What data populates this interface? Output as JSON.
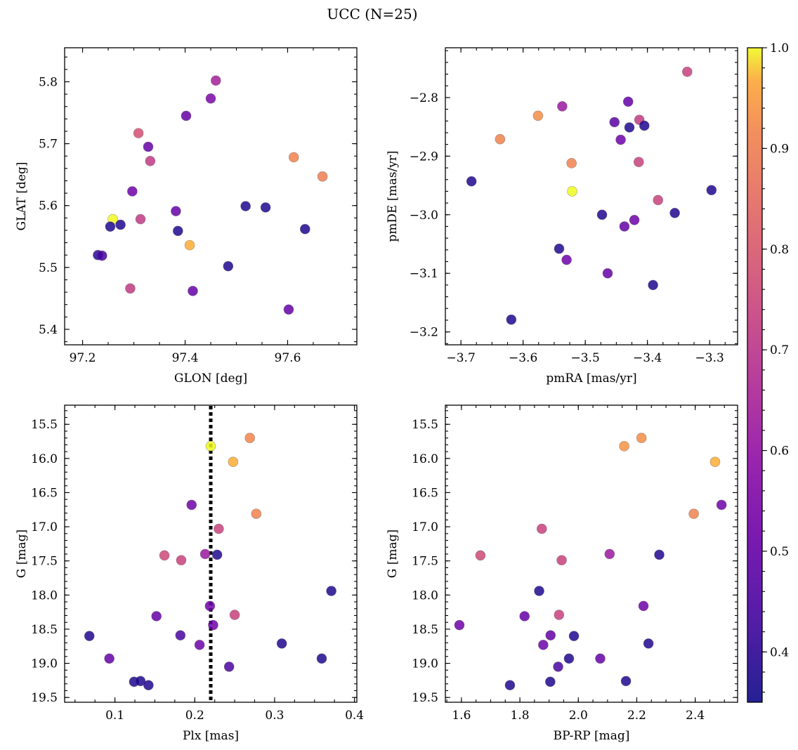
{
  "figure": {
    "title": "UCC (N=25)"
  },
  "colorbar": {
    "colormap": "plasma",
    "range": [
      0.35,
      1.0
    ],
    "ticks": [
      "0.4",
      "0.5",
      "0.6",
      "0.7",
      "0.8",
      "0.9",
      "1.0"
    ]
  },
  "chart_data": [
    {
      "type": "scatter",
      "xlabel": "GLON [deg]",
      "ylabel": "GLAT [deg]",
      "xlim": [
        97.165,
        97.735
      ],
      "ylim": [
        5.375,
        5.855
      ],
      "xticks": [
        "97.2",
        "97.4",
        "97.6"
      ],
      "yticks": [
        "5.4",
        "5.5",
        "5.6",
        "5.7",
        "5.8"
      ],
      "points": [
        {
          "x": 97.259,
          "y": 5.578,
          "c": 1.0
        },
        {
          "x": 97.409,
          "y": 5.536,
          "c": 0.97
        },
        {
          "x": 97.612,
          "y": 5.678,
          "c": 0.91
        },
        {
          "x": 97.668,
          "y": 5.647,
          "c": 0.9
        },
        {
          "x": 97.309,
          "y": 5.717,
          "c": 0.78
        },
        {
          "x": 97.332,
          "y": 5.672,
          "c": 0.72
        },
        {
          "x": 97.313,
          "y": 5.578,
          "c": 0.72
        },
        {
          "x": 97.293,
          "y": 5.466,
          "c": 0.72
        },
        {
          "x": 97.46,
          "y": 5.802,
          "c": 0.64
        },
        {
          "x": 97.45,
          "y": 5.773,
          "c": 0.55
        },
        {
          "x": 97.402,
          "y": 5.745,
          "c": 0.5
        },
        {
          "x": 97.328,
          "y": 5.695,
          "c": 0.5
        },
        {
          "x": 97.297,
          "y": 5.623,
          "c": 0.52
        },
        {
          "x": 97.382,
          "y": 5.591,
          "c": 0.5
        },
        {
          "x": 97.415,
          "y": 5.462,
          "c": 0.5
        },
        {
          "x": 97.602,
          "y": 5.432,
          "c": 0.5
        },
        {
          "x": 97.23,
          "y": 5.52,
          "c": 0.4
        },
        {
          "x": 97.238,
          "y": 5.519,
          "c": 0.44
        },
        {
          "x": 97.254,
          "y": 5.566,
          "c": 0.38
        },
        {
          "x": 97.274,
          "y": 5.569,
          "c": 0.38
        },
        {
          "x": 97.386,
          "y": 5.559,
          "c": 0.38
        },
        {
          "x": 97.484,
          "y": 5.502,
          "c": 0.38
        },
        {
          "x": 97.518,
          "y": 5.599,
          "c": 0.38
        },
        {
          "x": 97.557,
          "y": 5.597,
          "c": 0.38
        },
        {
          "x": 97.634,
          "y": 5.562,
          "c": 0.38
        }
      ]
    },
    {
      "type": "scatter",
      "xlabel": "pmRA [mas/yr]",
      "ylabel": "pmDE [mas/yr]",
      "xlim": [
        -3.725,
        -3.255
      ],
      "ylim": [
        -3.222,
        -2.715
      ],
      "xticks": [
        "−3.7",
        "−3.6",
        "−3.5",
        "−3.4",
        "−3.3"
      ],
      "yticks": [
        "−3.2",
        "−3.1",
        "−3.0",
        "−2.9",
        "−2.8"
      ],
      "points": [
        {
          "x": -3.521,
          "y": -2.96,
          "c": 1.0
        },
        {
          "x": -3.576,
          "y": -2.831,
          "c": 0.93
        },
        {
          "x": -3.637,
          "y": -2.871,
          "c": 0.91
        },
        {
          "x": -3.522,
          "y": -2.912,
          "c": 0.91
        },
        {
          "x": -3.336,
          "y": -2.756,
          "c": 0.74
        },
        {
          "x": -3.413,
          "y": -2.838,
          "c": 0.72
        },
        {
          "x": -3.414,
          "y": -2.91,
          "c": 0.74
        },
        {
          "x": -3.383,
          "y": -2.975,
          "c": 0.74
        },
        {
          "x": -3.537,
          "y": -2.815,
          "c": 0.62
        },
        {
          "x": -3.431,
          "y": -2.807,
          "c": 0.5
        },
        {
          "x": -3.453,
          "y": -2.842,
          "c": 0.48
        },
        {
          "x": -3.443,
          "y": -2.872,
          "c": 0.52
        },
        {
          "x": -3.437,
          "y": -3.02,
          "c": 0.5
        },
        {
          "x": -3.421,
          "y": -3.009,
          "c": 0.52
        },
        {
          "x": -3.464,
          "y": -3.1,
          "c": 0.5
        },
        {
          "x": -3.53,
          "y": -3.077,
          "c": 0.52
        },
        {
          "x": -3.429,
          "y": -2.851,
          "c": 0.38
        },
        {
          "x": -3.405,
          "y": -2.848,
          "c": 0.38
        },
        {
          "x": -3.683,
          "y": -2.943,
          "c": 0.38
        },
        {
          "x": -3.473,
          "y": -3.0,
          "c": 0.38
        },
        {
          "x": -3.356,
          "y": -2.997,
          "c": 0.38
        },
        {
          "x": -3.297,
          "y": -2.958,
          "c": 0.38
        },
        {
          "x": -3.542,
          "y": -3.058,
          "c": 0.38
        },
        {
          "x": -3.391,
          "y": -3.12,
          "c": 0.38
        },
        {
          "x": -3.619,
          "y": -3.179,
          "c": 0.38
        }
      ]
    },
    {
      "type": "scatter",
      "xlabel": "Plx [mas]",
      "ylabel": "G [mag]",
      "xlim": [
        0.037,
        0.403
      ],
      "ylim": [
        19.57,
        15.22
      ],
      "inverted_y": true,
      "xticks": [
        "0.1",
        "0.2",
        "0.3",
        "0.4"
      ],
      "yticks": [
        "15.5",
        "16.0",
        "16.5",
        "17.0",
        "17.5",
        "18.0",
        "18.5",
        "19.0",
        "19.5"
      ],
      "reference_line": {
        "x": 0.22,
        "style": "dotted"
      },
      "points": [
        {
          "x": 0.22,
          "y": 15.82,
          "c": 1.0
        },
        {
          "x": 0.269,
          "y": 15.7,
          "c": 0.92
        },
        {
          "x": 0.248,
          "y": 16.05,
          "c": 0.97
        },
        {
          "x": 0.277,
          "y": 16.81,
          "c": 0.91
        },
        {
          "x": 0.196,
          "y": 16.68,
          "c": 0.52
        },
        {
          "x": 0.23,
          "y": 17.03,
          "c": 0.74
        },
        {
          "x": 0.162,
          "y": 17.42,
          "c": 0.76
        },
        {
          "x": 0.183,
          "y": 17.49,
          "c": 0.74
        },
        {
          "x": 0.213,
          "y": 17.4,
          "c": 0.62
        },
        {
          "x": 0.228,
          "y": 17.41,
          "c": 0.38
        },
        {
          "x": 0.25,
          "y": 18.29,
          "c": 0.74
        },
        {
          "x": 0.371,
          "y": 17.94,
          "c": 0.38
        },
        {
          "x": 0.219,
          "y": 18.16,
          "c": 0.52
        },
        {
          "x": 0.152,
          "y": 18.31,
          "c": 0.5
        },
        {
          "x": 0.223,
          "y": 18.44,
          "c": 0.52
        },
        {
          "x": 0.068,
          "y": 18.6,
          "c": 0.38
        },
        {
          "x": 0.182,
          "y": 18.59,
          "c": 0.45
        },
        {
          "x": 0.206,
          "y": 18.73,
          "c": 0.52
        },
        {
          "x": 0.309,
          "y": 18.71,
          "c": 0.38
        },
        {
          "x": 0.093,
          "y": 18.93,
          "c": 0.5
        },
        {
          "x": 0.359,
          "y": 18.93,
          "c": 0.38
        },
        {
          "x": 0.243,
          "y": 19.05,
          "c": 0.45
        },
        {
          "x": 0.124,
          "y": 19.27,
          "c": 0.38
        },
        {
          "x": 0.132,
          "y": 19.26,
          "c": 0.38
        },
        {
          "x": 0.142,
          "y": 19.32,
          "c": 0.38
        }
      ]
    },
    {
      "type": "scatter",
      "xlabel": "BP-RP [mag]",
      "ylabel": "G [mag]",
      "xlim": [
        1.545,
        2.545
      ],
      "ylim": [
        19.57,
        15.22
      ],
      "inverted_y": true,
      "xticks": [
        "1.6",
        "1.8",
        "2.0",
        "2.2",
        "2.4"
      ],
      "yticks": [
        "15.5",
        "16.0",
        "16.5",
        "17.0",
        "17.5",
        "18.0",
        "18.5",
        "19.0",
        "19.5"
      ],
      "points": [
        {
          "x": 2.157,
          "y": 15.82,
          "c": 0.94
        },
        {
          "x": 2.216,
          "y": 15.7,
          "c": 0.93
        },
        {
          "x": 2.468,
          "y": 16.05,
          "c": 0.97
        },
        {
          "x": 2.395,
          "y": 16.81,
          "c": 0.91
        },
        {
          "x": 2.49,
          "y": 16.68,
          "c": 0.52
        },
        {
          "x": 1.875,
          "y": 17.03,
          "c": 0.74
        },
        {
          "x": 1.665,
          "y": 17.42,
          "c": 0.76
        },
        {
          "x": 1.943,
          "y": 17.49,
          "c": 0.74
        },
        {
          "x": 2.107,
          "y": 17.4,
          "c": 0.62
        },
        {
          "x": 2.277,
          "y": 17.41,
          "c": 0.38
        },
        {
          "x": 1.866,
          "y": 17.94,
          "c": 0.38
        },
        {
          "x": 1.934,
          "y": 18.29,
          "c": 0.74
        },
        {
          "x": 2.223,
          "y": 18.16,
          "c": 0.52
        },
        {
          "x": 1.816,
          "y": 18.31,
          "c": 0.5
        },
        {
          "x": 1.593,
          "y": 18.44,
          "c": 0.52
        },
        {
          "x": 1.905,
          "y": 18.59,
          "c": 0.5
        },
        {
          "x": 1.985,
          "y": 18.6,
          "c": 0.38
        },
        {
          "x": 1.88,
          "y": 18.73,
          "c": 0.52
        },
        {
          "x": 2.24,
          "y": 18.71,
          "c": 0.38
        },
        {
          "x": 1.968,
          "y": 18.93,
          "c": 0.38
        },
        {
          "x": 2.075,
          "y": 18.93,
          "c": 0.5
        },
        {
          "x": 1.931,
          "y": 19.05,
          "c": 0.45
        },
        {
          "x": 1.904,
          "y": 19.27,
          "c": 0.38
        },
        {
          "x": 2.163,
          "y": 19.26,
          "c": 0.38
        },
        {
          "x": 1.766,
          "y": 19.32,
          "c": 0.38
        }
      ]
    }
  ]
}
